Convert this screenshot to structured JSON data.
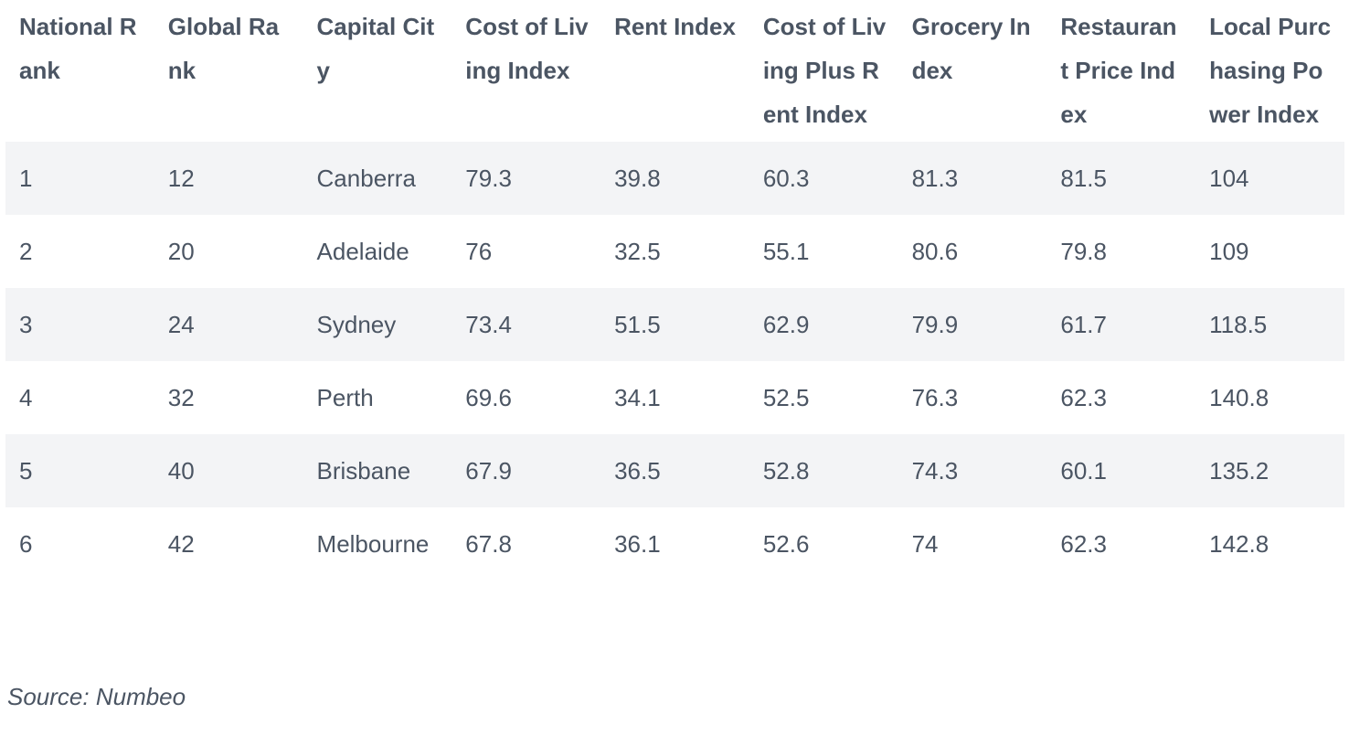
{
  "table": {
    "headers": [
      "National Rank",
      "Global Rank",
      "Capital City",
      "Cost of Living Index",
      "Rent Index",
      "Cost of Living Plus Rent Index",
      "Grocery Index",
      "Restaurant Price Index",
      "Local Purchasing Power Index"
    ],
    "rows": [
      [
        "1",
        "12",
        "Canberra",
        "79.3",
        "39.8",
        "60.3",
        "81.3",
        "81.5",
        "104"
      ],
      [
        "2",
        "20",
        "Adelaide",
        "76",
        "32.5",
        "55.1",
        "80.6",
        "79.8",
        "109"
      ],
      [
        "3",
        "24",
        "Sydney",
        "73.4",
        "51.5",
        "62.9",
        "79.9",
        "61.7",
        "118.5"
      ],
      [
        "4",
        "32",
        "Perth",
        "69.6",
        "34.1",
        "52.5",
        "76.3",
        "62.3",
        "140.8"
      ],
      [
        "5",
        "40",
        "Brisbane",
        "67.9",
        "36.5",
        "52.8",
        "74.3",
        "60.1",
        "135.2"
      ],
      [
        "6",
        "42",
        "Melbourne",
        "67.8",
        "36.1",
        "52.6",
        "74",
        "62.3",
        "142.8"
      ]
    ]
  },
  "source": "Source: Numbeo",
  "colors": {
    "text": "#4b5563",
    "stripe": "#f3f4f6",
    "background": "#ffffff"
  }
}
